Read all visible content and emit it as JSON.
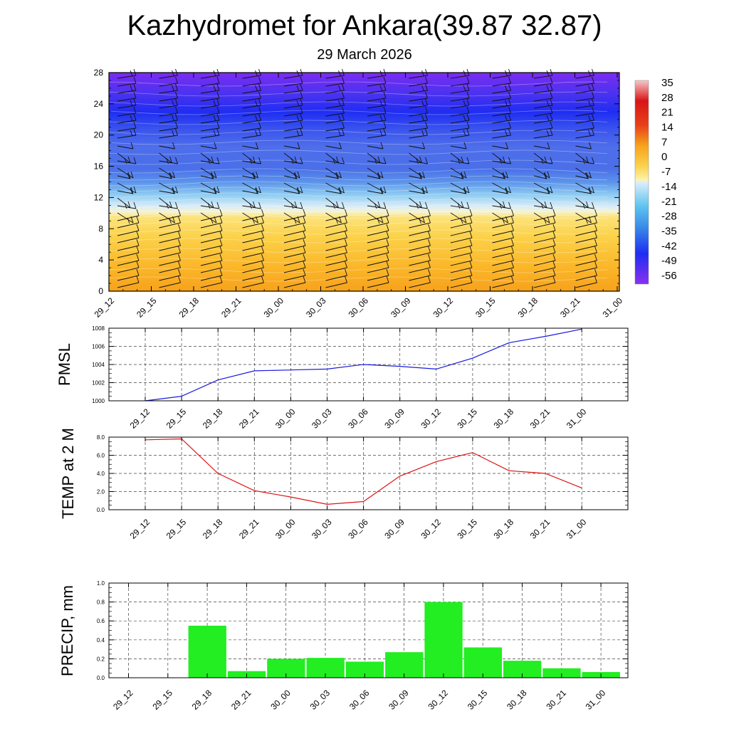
{
  "title": "Kazhydromet for Ankara(39.87 32.87)",
  "date": "29 March 2026",
  "time_labels": [
    "29_12",
    "29_15",
    "29_18",
    "29_21",
    "30_00",
    "30_03",
    "30_06",
    "30_09",
    "30_12",
    "30_15",
    "30_18",
    "30_21",
    "31_00"
  ],
  "chart_data": [
    {
      "type": "heatmap",
      "y_range": [
        0,
        28
      ],
      "y_ticks": [
        0,
        4,
        8,
        12,
        16,
        20,
        24,
        28
      ],
      "colorbar_labels": [
        "35",
        "28",
        "21",
        "14",
        "7",
        "0",
        "-7",
        "-14",
        "-21",
        "-28",
        "-35",
        "-42",
        "-49",
        "-56"
      ],
      "colors": {
        "warm": "#fbd24a",
        "deep_warm": "#f7a21c",
        "cold": "#2d3ff0",
        "coldest": "#7a2df2",
        "transition": "#dfeefa"
      }
    },
    {
      "type": "line",
      "ylabel": "PMSL",
      "ylim": [
        1000,
        1008
      ],
      "y_ticks": [
        1000,
        1002,
        1004,
        1006,
        1008
      ],
      "values": [
        1000.0,
        1000.5,
        1002.3,
        1003.3,
        1003.4,
        1003.5,
        1004.0,
        1003.8,
        1003.5,
        1004.7,
        1006.4,
        1007.1,
        1007.9
      ],
      "color": "#1a1adf"
    },
    {
      "type": "line",
      "ylabel": "TEMP at 2 M",
      "ylim": [
        0,
        8
      ],
      "y_ticks": [
        "0.0",
        "2.0",
        "4.0",
        "6.0",
        "8.0"
      ],
      "values": [
        7.7,
        7.8,
        4.0,
        2.1,
        1.4,
        0.6,
        0.9,
        3.7,
        5.3,
        6.3,
        4.3,
        4.0,
        2.4
      ],
      "color": "#e01414"
    },
    {
      "type": "bar",
      "ylabel": "PRECIP, mm",
      "ylim": [
        0,
        1.0
      ],
      "y_ticks": [
        "0.0",
        "0.2",
        "0.4",
        "0.6",
        "0.8",
        "1.0"
      ],
      "values": [
        0.0,
        0.0,
        0.55,
        0.07,
        0.2,
        0.21,
        0.17,
        0.27,
        0.8,
        0.32,
        0.18,
        0.1,
        0.06
      ],
      "color": "#22ee22"
    }
  ]
}
